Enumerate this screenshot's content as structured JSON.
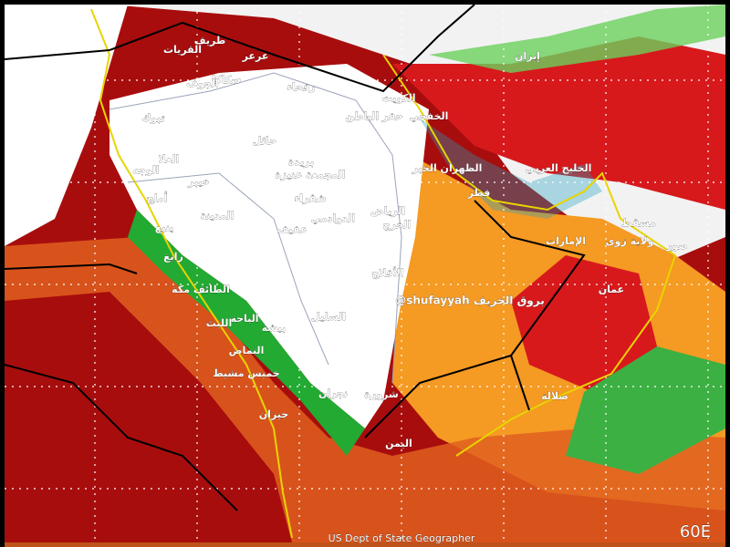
{
  "labels": [
    "إيران",
    "الكويت",
    "الخفجي",
    "حفر الباطن",
    "رفحاء",
    "عرعر",
    "طريف",
    "القريات",
    "سكاكا",
    "الجوف",
    "تبوك",
    "حائل",
    "بريدة",
    "المجمعة عنيزة",
    "العلا",
    "الوجه",
    "خيبر",
    "أملج",
    "المدينة",
    "ينبع",
    "شقراء",
    "الدوادمي",
    "عفيف",
    "الرياض",
    "الخرج",
    "رابغ",
    "الأفلاج",
    "الظهران الخبر",
    "قطر",
    "الخليج العربي",
    "مسقط",
    "الإمارات",
    "ولاية زوى",
    "صور",
    "عمان",
    "الطائف مكة",
    "السليل",
    "الليث",
    "الباحة",
    "بيشة",
    "النماص",
    "خميس مشيط",
    "نجران",
    "شرورة",
    "صلالة",
    "جيزان",
    "اليمن"
  ],
  "watermark": "@shufayyah بروق الخريف",
  "credit": "US Dept of State Geographer",
  "corner_label": "60E"
}
